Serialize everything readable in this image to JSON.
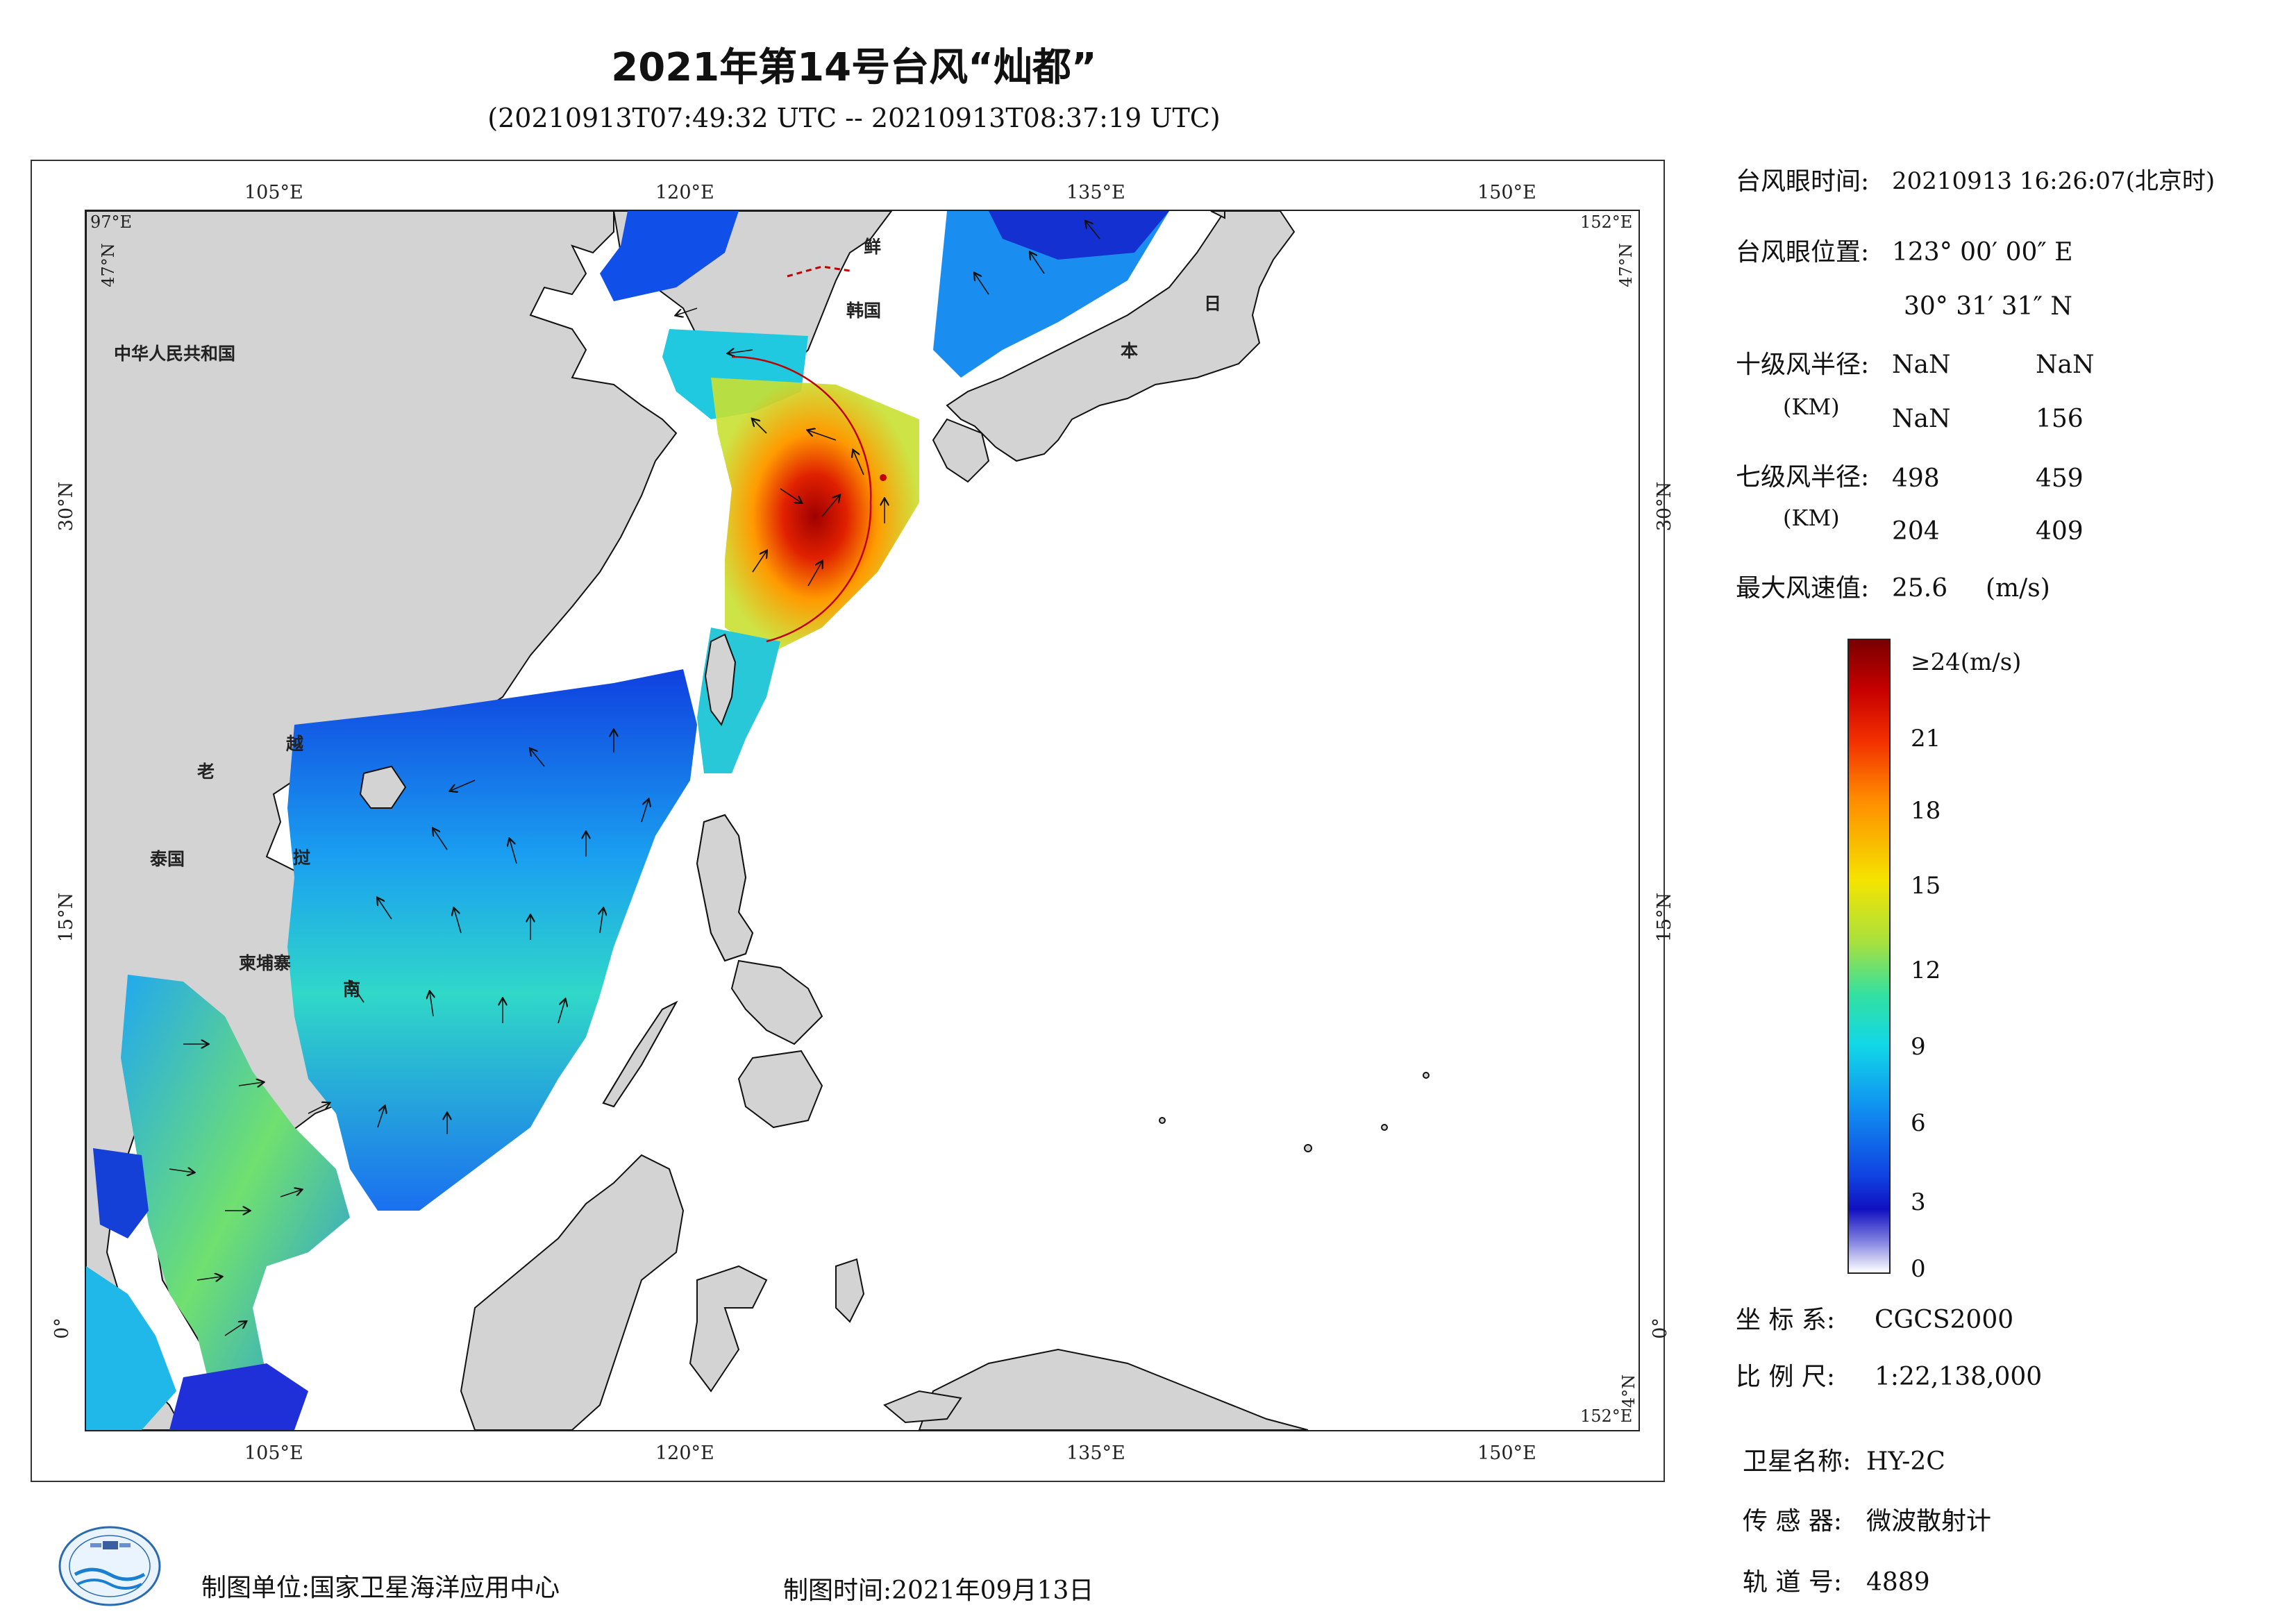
{
  "header": {
    "title": "2021年第14号台风“灿都”",
    "subtitle": "(20210913T07:49:32 UTC -- 20210913T08:37:19 UTC)"
  },
  "map": {
    "lon_labels": [
      "105°E",
      "120°E",
      "135°E",
      "150°E"
    ],
    "lat_labels": [
      "30°N",
      "15°N",
      "0°"
    ],
    "corner_labels": {
      "top_left": "97°E",
      "top_left_lat": "47°N",
      "top_right": "152°E",
      "top_right_lat": "47°N",
      "bottom_right_lat": "4°N",
      "bottom_right": "152°E"
    },
    "country_labels": {
      "china": "中华人民共和国",
      "korea_n": "鲜",
      "korea_s": "韩国",
      "japan_1": "日",
      "japan_2": "本",
      "laos": "老",
      "vietnam_1": "越",
      "vietnam_2": "挝",
      "vietnam_3": "南",
      "thailand": "泰国",
      "cambodia": "柬埔寨"
    }
  },
  "info": {
    "eye_time_label": "台风眼时间:",
    "eye_time_value": "20210913 16:26:07(北京时)",
    "eye_pos_label": "台风眼位置:",
    "eye_pos_lon": "123° 00′ 00″ E",
    "eye_pos_lat": "30° 31′ 31″ N",
    "r10_label": "十级风半径:",
    "r10_unit": "(KM)",
    "r10_values": [
      "NaN",
      "NaN",
      "NaN",
      "156"
    ],
    "r7_label": "七级风半径:",
    "r7_unit": "(KM)",
    "r7_values": [
      "498",
      "459",
      "204",
      "409"
    ],
    "max_wind_label": "最大风速值:",
    "max_wind_value": "25.6",
    "max_wind_unit": "(m/s)"
  },
  "colorbar": {
    "labels": [
      "≥24(m/s)",
      "21",
      "18",
      "15",
      "12",
      "9",
      "6",
      "3",
      "0"
    ],
    "colors": [
      "#7a0000",
      "#c80000",
      "#ff8a00",
      "#f5e400",
      "#33e0a0",
      "#12d8e8",
      "#1040e0",
      "#ffffff"
    ]
  },
  "meta": {
    "crs_label": "坐 标 系:",
    "crs_value": "CGCS2000",
    "scale_label": "比 例 尺:",
    "scale_value": "1:22,138,000",
    "satellite_label": "卫星名称:",
    "satellite_value": "HY-2C",
    "sensor_label": "传 感 器:",
    "sensor_value": "微波散射计",
    "orbit_label": "轨 道 号:",
    "orbit_value": "4889"
  },
  "footer": {
    "unit": "制图单位:国家卫星海洋应用中心",
    "date": "制图时间:2021年09月13日"
  },
  "colors": {
    "land": "#d3d3d3",
    "ocean": "#ffffff",
    "typhoon_circle": "#c00000"
  }
}
